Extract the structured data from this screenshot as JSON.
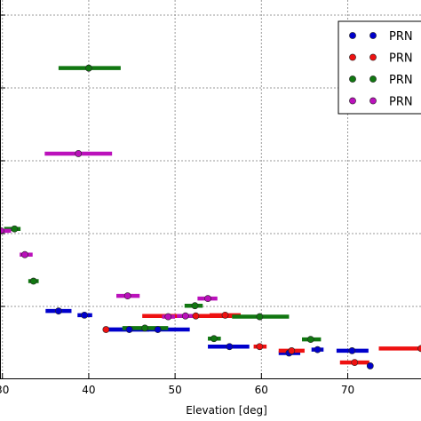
{
  "chart_data": {
    "type": "scatter",
    "title": "",
    "xlabel": "Elevation [deg]",
    "ylabel": "",
    "xlim": [
      29,
      79
    ],
    "ylim": [
      0,
      1
    ],
    "xticks": [
      30,
      40,
      50,
      60,
      70
    ],
    "grid": true,
    "error_bars": "horizontal",
    "legend": {
      "placement": "top-right",
      "entries": [
        "PRN",
        "PRN",
        "PRN",
        "PRN"
      ]
    },
    "series": [
      {
        "name": "PRN",
        "color": "#0000cc",
        "points": [
          {
            "x": 36.5,
            "y": 0.178,
            "xmin": 35.0,
            "xmax": 38.0
          },
          {
            "x": 39.5,
            "y": 0.167,
            "xmin": 38.7,
            "xmax": 40.4
          },
          {
            "x": 44.7,
            "y": 0.129,
            "xmin": 42.0,
            "xmax": 47.0
          },
          {
            "x": 48.0,
            "y": 0.129,
            "xmin": 42.0,
            "xmax": 51.7
          },
          {
            "x": 56.3,
            "y": 0.084,
            "xmin": 53.8,
            "xmax": 58.6
          },
          {
            "x": 63.2,
            "y": 0.067,
            "xmin": 62.0,
            "xmax": 64.5
          },
          {
            "x": 66.5,
            "y": 0.076,
            "xmin": 65.8,
            "xmax": 67.2
          },
          {
            "x": 70.5,
            "y": 0.073,
            "xmin": 68.7,
            "xmax": 72.4
          },
          {
            "x": 72.6,
            "y": 0.033,
            "xmin": 72.6,
            "xmax": 72.6
          }
        ]
      },
      {
        "name": "PRN",
        "color": "#ee1111",
        "points": [
          {
            "x": 52.4,
            "y": 0.165,
            "xmin": 46.2,
            "xmax": 56.6
          },
          {
            "x": 55.8,
            "y": 0.167,
            "xmin": 54.0,
            "xmax": 57.6
          },
          {
            "x": 42.0,
            "y": 0.129,
            "xmin": 42.0,
            "xmax": 42.2
          },
          {
            "x": 59.8,
            "y": 0.084,
            "xmin": 59.1,
            "xmax": 60.6
          },
          {
            "x": 63.5,
            "y": 0.073,
            "xmin": 62.0,
            "xmax": 65.0
          },
          {
            "x": 70.8,
            "y": 0.042,
            "xmin": 69.1,
            "xmax": 72.5
          },
          {
            "x": 78.5,
            "y": 0.079,
            "xmin": 73.6,
            "xmax": 79.0
          }
        ]
      },
      {
        "name": "PRN",
        "color": "#117711",
        "points": [
          {
            "x": 40.0,
            "y": 0.82,
            "xmin": 36.5,
            "xmax": 43.7
          },
          {
            "x": 31.4,
            "y": 0.395,
            "xmin": 30.2,
            "xmax": 32.1
          },
          {
            "x": 33.6,
            "y": 0.257,
            "xmin": 33.0,
            "xmax": 34.2
          },
          {
            "x": 52.3,
            "y": 0.192,
            "xmin": 51.1,
            "xmax": 53.2
          },
          {
            "x": 46.5,
            "y": 0.133,
            "xmin": 43.9,
            "xmax": 49.2
          },
          {
            "x": 59.8,
            "y": 0.163,
            "xmin": 56.6,
            "xmax": 63.2
          },
          {
            "x": 54.5,
            "y": 0.105,
            "xmin": 53.8,
            "xmax": 55.3
          },
          {
            "x": 65.7,
            "y": 0.103,
            "xmin": 64.7,
            "xmax": 66.9
          }
        ]
      },
      {
        "name": "PRN",
        "color": "#bb11bb",
        "points": [
          {
            "x": 38.8,
            "y": 0.594,
            "xmin": 34.9,
            "xmax": 42.7
          },
          {
            "x": 29.8,
            "y": 0.39,
            "xmin": 29.0,
            "xmax": 31.0
          },
          {
            "x": 32.6,
            "y": 0.327,
            "xmin": 32.0,
            "xmax": 33.5
          },
          {
            "x": 44.5,
            "y": 0.218,
            "xmin": 43.2,
            "xmax": 45.9
          },
          {
            "x": 53.8,
            "y": 0.211,
            "xmin": 52.6,
            "xmax": 54.9
          },
          {
            "x": 51.2,
            "y": 0.165,
            "xmin": 50.2,
            "xmax": 52.2
          },
          {
            "x": 49.2,
            "y": 0.163,
            "xmin": 48.5,
            "xmax": 50.0
          }
        ]
      }
    ]
  }
}
